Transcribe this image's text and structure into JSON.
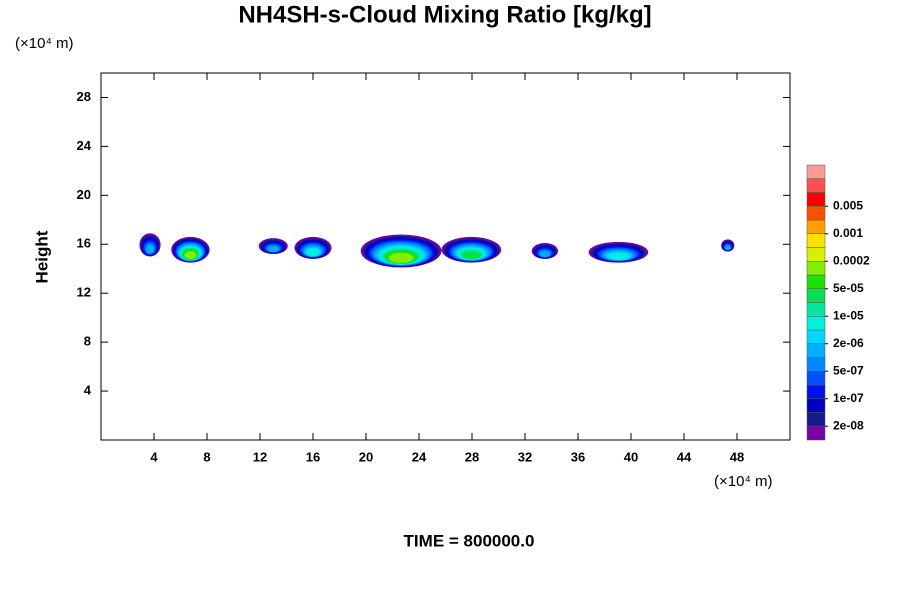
{
  "chart_data": {
    "type": "contour",
    "title": "NH4SH-s-Cloud Mixing Ratio [kg/kg]",
    "ylabel": "Height",
    "yunit": "(×10⁴ m)",
    "xunit": "(×10⁴ m)",
    "caption": "TIME = 800000.0",
    "xlim": [
      0,
      52
    ],
    "xticks": [
      4,
      8,
      12,
      16,
      20,
      24,
      28,
      32,
      36,
      40,
      44,
      48
    ],
    "ylim": [
      0,
      30
    ],
    "yticks": [
      4,
      8,
      12,
      16,
      20,
      24,
      28
    ],
    "regions": [
      {
        "x": [
          2.9,
          4.5
        ],
        "y": [
          15.0,
          16.9
        ],
        "max": 5e-07
      },
      {
        "x": [
          5.3,
          8.2
        ],
        "y": [
          14.5,
          16.6
        ],
        "max": 5e-05
      },
      {
        "x": [
          11.9,
          14.1
        ],
        "y": [
          15.2,
          16.5
        ],
        "max": 5e-07
      },
      {
        "x": [
          14.6,
          17.4
        ],
        "y": [
          14.8,
          16.6
        ],
        "max": 2e-06
      },
      {
        "x": [
          19.6,
          25.7
        ],
        "y": [
          14.1,
          16.8
        ],
        "max": 5e-05
      },
      {
        "x": [
          25.7,
          30.2
        ],
        "y": [
          14.5,
          16.6
        ],
        "max": 1e-05
      },
      {
        "x": [
          32.5,
          34.5
        ],
        "y": [
          14.8,
          16.1
        ],
        "max": 5e-07
      },
      {
        "x": [
          36.8,
          41.3
        ],
        "y": [
          14.5,
          16.2
        ],
        "max": 2e-06
      },
      {
        "x": [
          46.8,
          47.8
        ],
        "y": [
          15.4,
          16.4
        ],
        "max": 5e-07
      }
    ],
    "colorbar": {
      "colors": [
        "#7a00a8",
        "#1a1a8c",
        "#0000c0",
        "#0010f0",
        "#0050ff",
        "#0088ff",
        "#00b0ff",
        "#00d8ff",
        "#00f0e0",
        "#00e8a0",
        "#00e050",
        "#20e000",
        "#80f000",
        "#d8f000",
        "#ffe000",
        "#ffa000",
        "#ff5000",
        "#ff0000",
        "#ff5050",
        "#ff9999"
      ],
      "ticks": [
        {
          "value": 2e-08,
          "label": "2e-08"
        },
        {
          "value": 1e-07,
          "label": "1e-07"
        },
        {
          "value": 5e-07,
          "label": "5e-07"
        },
        {
          "value": 2e-06,
          "label": "2e-06"
        },
        {
          "value": 1e-05,
          "label": "1e-05"
        },
        {
          "value": 5e-05,
          "label": "5e-05"
        },
        0.0002,
        0.001,
        0.005
      ]
    }
  }
}
